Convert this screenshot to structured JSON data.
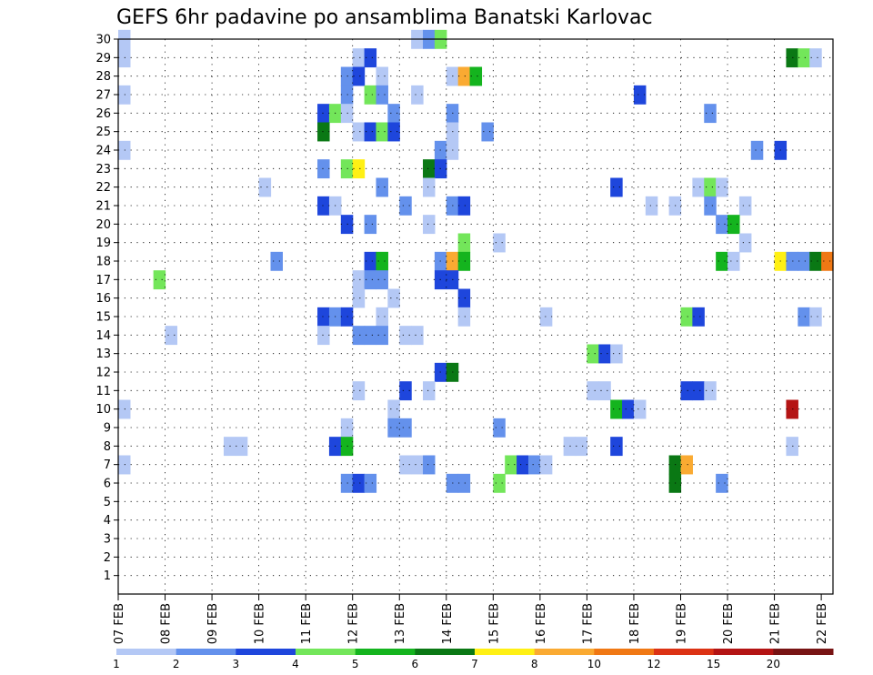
{
  "chart_data": {
    "type": "heatmap",
    "title": "GEFS 6hr padavine po ansamblima Banatski Karlovac",
    "xlabel": "",
    "ylabel": "",
    "x_ticks": [
      "07 FEB",
      "08 FEB",
      "09 FEB",
      "10 FEB",
      "11 FEB",
      "12 FEB",
      "13 FEB",
      "14 FEB",
      "15 FEB",
      "16 FEB",
      "17 FEB",
      "18 FEB",
      "19 FEB",
      "20 FEB",
      "21 FEB",
      "22 FEB"
    ],
    "y_ticks": [
      "1",
      "2",
      "3",
      "4",
      "5",
      "6",
      "7",
      "8",
      "9",
      "10",
      "11",
      "12",
      "13",
      "14",
      "15",
      "16",
      "17",
      "18",
      "19",
      "20",
      "21",
      "22",
      "23",
      "24",
      "25",
      "26",
      "27",
      "28",
      "29",
      "30"
    ],
    "xlim_steps": [
      0,
      61
    ],
    "ylim_members": [
      0,
      30
    ],
    "steps_per_day": 4,
    "grid": true,
    "legend": {
      "position": "bottom",
      "labels": [
        "1",
        "2",
        "3",
        "4",
        "5",
        "6",
        "7",
        "8",
        "10",
        "12",
        "15",
        "20"
      ],
      "colors": [
        "#b4c8f5",
        "#6491ec",
        "#1e46dc",
        "#73e65a",
        "#14b41e",
        "#0a7814",
        "#fff014",
        "#faaa32",
        "#f07814",
        "#dc3214",
        "#b41414",
        "#781414"
      ]
    },
    "cells": [
      {
        "t": 0,
        "m": 30,
        "c": 0
      },
      {
        "t": 25,
        "m": 30,
        "c": 0
      },
      {
        "t": 26,
        "m": 30,
        "c": 1
      },
      {
        "t": 27,
        "m": 30,
        "c": 3
      },
      {
        "t": 0,
        "m": 29,
        "c": 0
      },
      {
        "t": 20,
        "m": 29,
        "c": 0
      },
      {
        "t": 21,
        "m": 29,
        "c": 2
      },
      {
        "t": 57,
        "m": 29,
        "c": 5
      },
      {
        "t": 58,
        "m": 29,
        "c": 3
      },
      {
        "t": 59,
        "m": 29,
        "c": 0
      },
      {
        "t": 19,
        "m": 28,
        "c": 1
      },
      {
        "t": 20,
        "m": 28,
        "c": 2
      },
      {
        "t": 22,
        "m": 28,
        "c": 0
      },
      {
        "t": 28,
        "m": 28,
        "c": 0
      },
      {
        "t": 29,
        "m": 28,
        "c": 7
      },
      {
        "t": 30,
        "m": 28,
        "c": 4
      },
      {
        "t": 0,
        "m": 27,
        "c": 0
      },
      {
        "t": 19,
        "m": 27,
        "c": 1
      },
      {
        "t": 21,
        "m": 27,
        "c": 3
      },
      {
        "t": 22,
        "m": 27,
        "c": 1
      },
      {
        "t": 25,
        "m": 27,
        "c": 0
      },
      {
        "t": 44,
        "m": 27,
        "c": 2
      },
      {
        "t": 17,
        "m": 26,
        "c": 2
      },
      {
        "t": 18,
        "m": 26,
        "c": 3
      },
      {
        "t": 19,
        "m": 26,
        "c": 0
      },
      {
        "t": 23,
        "m": 26,
        "c": 1
      },
      {
        "t": 28,
        "m": 26,
        "c": 1
      },
      {
        "t": 50,
        "m": 26,
        "c": 1
      },
      {
        "t": 17,
        "m": 25,
        "c": 5
      },
      {
        "t": 20,
        "m": 25,
        "c": 0
      },
      {
        "t": 21,
        "m": 25,
        "c": 2
      },
      {
        "t": 22,
        "m": 25,
        "c": 3
      },
      {
        "t": 23,
        "m": 25,
        "c": 2
      },
      {
        "t": 28,
        "m": 25,
        "c": 0
      },
      {
        "t": 31,
        "m": 25,
        "c": 1
      },
      {
        "t": 0,
        "m": 24,
        "c": 0
      },
      {
        "t": 27,
        "m": 24,
        "c": 1
      },
      {
        "t": 28,
        "m": 24,
        "c": 0
      },
      {
        "t": 54,
        "m": 24,
        "c": 1
      },
      {
        "t": 56,
        "m": 24,
        "c": 2
      },
      {
        "t": 17,
        "m": 23,
        "c": 1
      },
      {
        "t": 19,
        "m": 23,
        "c": 3
      },
      {
        "t": 20,
        "m": 23,
        "c": 6
      },
      {
        "t": 26,
        "m": 23,
        "c": 5
      },
      {
        "t": 27,
        "m": 23,
        "c": 2
      },
      {
        "t": 12,
        "m": 22,
        "c": 0
      },
      {
        "t": 22,
        "m": 22,
        "c": 1
      },
      {
        "t": 26,
        "m": 22,
        "c": 0
      },
      {
        "t": 42,
        "m": 22,
        "c": 2
      },
      {
        "t": 49,
        "m": 22,
        "c": 0
      },
      {
        "t": 50,
        "m": 22,
        "c": 3
      },
      {
        "t": 51,
        "m": 22,
        "c": 0
      },
      {
        "t": 17,
        "m": 21,
        "c": 2
      },
      {
        "t": 18,
        "m": 21,
        "c": 0
      },
      {
        "t": 24,
        "m": 21,
        "c": 1
      },
      {
        "t": 28,
        "m": 21,
        "c": 1
      },
      {
        "t": 29,
        "m": 21,
        "c": 2
      },
      {
        "t": 45,
        "m": 21,
        "c": 0
      },
      {
        "t": 47,
        "m": 21,
        "c": 0
      },
      {
        "t": 50,
        "m": 21,
        "c": 1
      },
      {
        "t": 53,
        "m": 21,
        "c": 0
      },
      {
        "t": 19,
        "m": 20,
        "c": 2
      },
      {
        "t": 21,
        "m": 20,
        "c": 1
      },
      {
        "t": 26,
        "m": 20,
        "c": 0
      },
      {
        "t": 51,
        "m": 20,
        "c": 1
      },
      {
        "t": 52,
        "m": 20,
        "c": 4
      },
      {
        "t": 29,
        "m": 19,
        "c": 3
      },
      {
        "t": 32,
        "m": 19,
        "c": 0
      },
      {
        "t": 53,
        "m": 19,
        "c": 0
      },
      {
        "t": 13,
        "m": 18,
        "c": 1
      },
      {
        "t": 21,
        "m": 18,
        "c": 2
      },
      {
        "t": 22,
        "m": 18,
        "c": 4
      },
      {
        "t": 27,
        "m": 18,
        "c": 1
      },
      {
        "t": 28,
        "m": 18,
        "c": 7
      },
      {
        "t": 29,
        "m": 18,
        "c": 4
      },
      {
        "t": 51,
        "m": 18,
        "c": 4
      },
      {
        "t": 52,
        "m": 18,
        "c": 0
      },
      {
        "t": 56,
        "m": 18,
        "c": 6
      },
      {
        "t": 57,
        "m": 18,
        "c": 1
      },
      {
        "t": 58,
        "m": 18,
        "c": 1
      },
      {
        "t": 59,
        "m": 18,
        "c": 5
      },
      {
        "t": 60,
        "m": 18,
        "c": 8
      },
      {
        "t": 3,
        "m": 17,
        "c": 3
      },
      {
        "t": 20,
        "m": 17,
        "c": 0
      },
      {
        "t": 21,
        "m": 17,
        "c": 1
      },
      {
        "t": 22,
        "m": 17,
        "c": 1
      },
      {
        "t": 27,
        "m": 17,
        "c": 2
      },
      {
        "t": 28,
        "m": 17,
        "c": 2
      },
      {
        "t": 20,
        "m": 16,
        "c": 0
      },
      {
        "t": 23,
        "m": 16,
        "c": 0
      },
      {
        "t": 29,
        "m": 16,
        "c": 2
      },
      {
        "t": 17,
        "m": 15,
        "c": 2
      },
      {
        "t": 18,
        "m": 15,
        "c": 1
      },
      {
        "t": 19,
        "m": 15,
        "c": 2
      },
      {
        "t": 22,
        "m": 15,
        "c": 0
      },
      {
        "t": 29,
        "m": 15,
        "c": 0
      },
      {
        "t": 36,
        "m": 15,
        "c": 0
      },
      {
        "t": 48,
        "m": 15,
        "c": 3
      },
      {
        "t": 49,
        "m": 15,
        "c": 2
      },
      {
        "t": 58,
        "m": 15,
        "c": 1
      },
      {
        "t": 59,
        "m": 15,
        "c": 0
      },
      {
        "t": 4,
        "m": 14,
        "c": 0
      },
      {
        "t": 17,
        "m": 14,
        "c": 0
      },
      {
        "t": 20,
        "m": 14,
        "c": 1
      },
      {
        "t": 21,
        "m": 14,
        "c": 1
      },
      {
        "t": 22,
        "m": 14,
        "c": 1
      },
      {
        "t": 24,
        "m": 14,
        "c": 0
      },
      {
        "t": 25,
        "m": 14,
        "c": 0
      },
      {
        "t": 40,
        "m": 13,
        "c": 3
      },
      {
        "t": 41,
        "m": 13,
        "c": 2
      },
      {
        "t": 42,
        "m": 13,
        "c": 0
      },
      {
        "t": 27,
        "m": 12,
        "c": 2
      },
      {
        "t": 28,
        "m": 12,
        "c": 5
      },
      {
        "t": 20,
        "m": 11,
        "c": 0
      },
      {
        "t": 24,
        "m": 11,
        "c": 2
      },
      {
        "t": 26,
        "m": 11,
        "c": 0
      },
      {
        "t": 40,
        "m": 11,
        "c": 0
      },
      {
        "t": 41,
        "m": 11,
        "c": 0
      },
      {
        "t": 48,
        "m": 11,
        "c": 2
      },
      {
        "t": 49,
        "m": 11,
        "c": 2
      },
      {
        "t": 50,
        "m": 11,
        "c": 0
      },
      {
        "t": 0,
        "m": 10,
        "c": 0
      },
      {
        "t": 23,
        "m": 10,
        "c": 0
      },
      {
        "t": 42,
        "m": 10,
        "c": 4
      },
      {
        "t": 43,
        "m": 10,
        "c": 2
      },
      {
        "t": 44,
        "m": 10,
        "c": 0
      },
      {
        "t": 57,
        "m": 10,
        "c": 10
      },
      {
        "t": 19,
        "m": 9,
        "c": 0
      },
      {
        "t": 23,
        "m": 9,
        "c": 1
      },
      {
        "t": 24,
        "m": 9,
        "c": 1
      },
      {
        "t": 32,
        "m": 9,
        "c": 1
      },
      {
        "t": 9,
        "m": 8,
        "c": 0
      },
      {
        "t": 10,
        "m": 8,
        "c": 0
      },
      {
        "t": 18,
        "m": 8,
        "c": 2
      },
      {
        "t": 19,
        "m": 8,
        "c": 4
      },
      {
        "t": 38,
        "m": 8,
        "c": 0
      },
      {
        "t": 39,
        "m": 8,
        "c": 0
      },
      {
        "t": 42,
        "m": 8,
        "c": 2
      },
      {
        "t": 57,
        "m": 8,
        "c": 0
      },
      {
        "t": 0,
        "m": 7,
        "c": 0
      },
      {
        "t": 24,
        "m": 7,
        "c": 0
      },
      {
        "t": 25,
        "m": 7,
        "c": 0
      },
      {
        "t": 26,
        "m": 7,
        "c": 1
      },
      {
        "t": 33,
        "m": 7,
        "c": 3
      },
      {
        "t": 34,
        "m": 7,
        "c": 2
      },
      {
        "t": 35,
        "m": 7,
        "c": 1
      },
      {
        "t": 36,
        "m": 7,
        "c": 0
      },
      {
        "t": 47,
        "m": 7,
        "c": 5
      },
      {
        "t": 48,
        "m": 7,
        "c": 7
      },
      {
        "t": 19,
        "m": 6,
        "c": 1
      },
      {
        "t": 20,
        "m": 6,
        "c": 2
      },
      {
        "t": 21,
        "m": 6,
        "c": 1
      },
      {
        "t": 28,
        "m": 6,
        "c": 1
      },
      {
        "t": 29,
        "m": 6,
        "c": 1
      },
      {
        "t": 32,
        "m": 6,
        "c": 3
      },
      {
        "t": 47,
        "m": 6,
        "c": 5
      },
      {
        "t": 51,
        "m": 6,
        "c": 1
      }
    ]
  }
}
